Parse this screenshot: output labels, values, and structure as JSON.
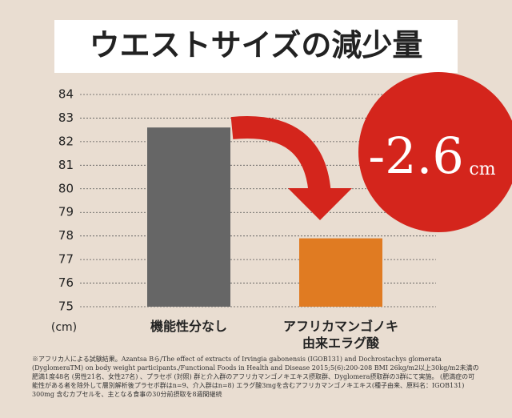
{
  "chart_data": {
    "type": "bar",
    "title": "ウエストサイズの減少量",
    "categories": [
      "機能性分なし",
      "アフリカマンゴノキ\n由来エラグ酸"
    ],
    "values": [
      82.6,
      77.9
    ],
    "colors": [
      "#666666",
      "#e07b22"
    ],
    "ylim": [
      75,
      84
    ],
    "yticks": [
      75,
      76,
      77,
      78,
      79,
      80,
      81,
      82,
      83,
      84
    ],
    "y_unit": "(cm)",
    "grid": true,
    "annotation": {
      "value": "-2.6",
      "unit": "cm"
    },
    "footnote": "※アフリカ人による試験結果。Azantsa Bら/The effect of extracts of Irvingia gabonensis (IGOB131) and Dochrostachys glomerata (DyglomeraTM) on body weight participants./Functional Foods in Health and Disease 2015;5(6):200-208 BMI 26kg/m2以上30kg/m2未満の肥満1度48名 (男性21名、女性27名) 、プラセボ (対照) 群と介入群のアフリカマンゴノキエキス摂取群、Dyglomera摂取群の3群にて実施。 (肥満症の可能性がある者を除外して層別解析後プラセボ群はn=9、介入群はn=8) エラグ酸3mgを含むアフリカマンゴノキエキス(種子由来、原料名：IGOB131) 300mg 含むカプセルを、主となる食事の30分前摂取を8週間継続"
  }
}
